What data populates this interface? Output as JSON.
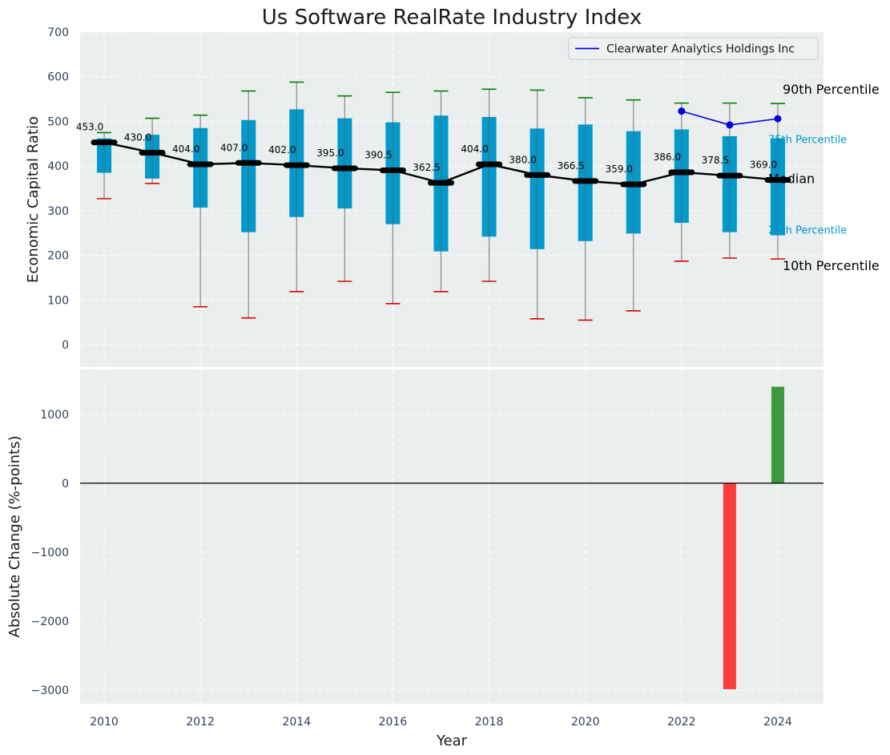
{
  "chart_data": {
    "type": "box",
    "title": "Us Software RealRate Industry Index",
    "colors": {
      "box": "#0099cc",
      "median": "#000000",
      "p90_cap": "#008000",
      "p10_cap": "#dd0000",
      "company": "#0000dd",
      "bar_pos": "#3c9a3c",
      "bar_neg": "#ff3b3b",
      "plot_bg": "#eaeeee"
    },
    "top_panel": {
      "ylabel": "Economic Capital Ratio",
      "ylim": [
        -50,
        700
      ],
      "yticks": [
        0,
        100,
        200,
        300,
        400,
        500,
        600,
        700
      ],
      "years": [
        2010,
        2011,
        2012,
        2013,
        2014,
        2015,
        2016,
        2017,
        2018,
        2019,
        2020,
        2021,
        2022,
        2023,
        2024
      ],
      "p10": [
        327,
        361,
        85,
        60,
        119,
        142,
        92,
        119,
        142,
        58,
        55,
        76,
        187,
        194,
        192
      ],
      "p25": [
        385,
        372,
        307,
        252,
        286,
        305,
        270,
        209,
        242,
        214,
        232,
        249,
        273,
        252,
        245
      ],
      "median": [
        453.0,
        430.0,
        404.0,
        407.0,
        402.0,
        395.0,
        390.5,
        362.5,
        404.0,
        380.0,
        366.5,
        359.0,
        386.0,
        378.5,
        369.0
      ],
      "median_labels": [
        "453.0",
        "430.0",
        "404.0",
        "407.0",
        "402.0",
        "395.0",
        "390.5",
        "362.5",
        "404.0",
        "380.0",
        "366.5",
        "359.0",
        "386.0",
        "378.5",
        "369.0"
      ],
      "p75": [
        462,
        470,
        485,
        503,
        527,
        507,
        498,
        513,
        510,
        484,
        493,
        478,
        482,
        467,
        462
      ],
      "p90": [
        475,
        507,
        514,
        568,
        588,
        557,
        565,
        568,
        572,
        570,
        553,
        548,
        541,
        541,
        540
      ],
      "company": {
        "name": "Clearwater Analytics Holdings Inc",
        "years": [
          2022,
          2023,
          2024
        ],
        "values": [
          523,
          492,
          506
        ]
      },
      "annotations": {
        "p90": "90th Percentile",
        "p75": "75th Percentile",
        "median": "Median",
        "p25": "25th Percentile",
        "p10": "10th Percentile"
      }
    },
    "bottom_panel": {
      "type": "bar",
      "ylabel": "Absolute Change (%-points)",
      "xlabel": "Year",
      "ylim": [
        -3200,
        1650
      ],
      "yticks": [
        -3000,
        -2000,
        -1000,
        0,
        1000
      ],
      "ytick_labels": [
        "−3000",
        "−2000",
        "−1000",
        "0",
        "1000"
      ],
      "years": [
        2023,
        2024
      ],
      "values": [
        -2990,
        1400
      ]
    },
    "xlim": [
      2009.5,
      2024.95
    ],
    "xticks": [
      2010,
      2012,
      2014,
      2016,
      2018,
      2020,
      2022,
      2024
    ],
    "grid": true,
    "legend_position": "top-right"
  }
}
